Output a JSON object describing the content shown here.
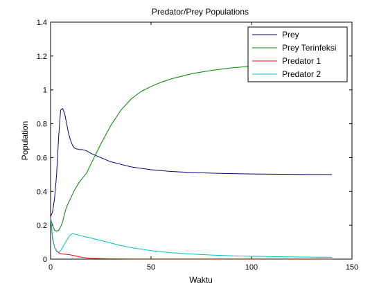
{
  "chart_data": {
    "type": "line",
    "title": "Predator/Prey Populations",
    "xlabel": "Waktu",
    "ylabel": "Population",
    "xlim": [
      0,
      150
    ],
    "ylim": [
      0,
      1.4
    ],
    "xticks": [
      "0",
      "50",
      "100",
      "150"
    ],
    "yticks": [
      "0",
      "0.2",
      "0.4",
      "0.6",
      "0.8",
      "1",
      "1.2",
      "1.4"
    ],
    "grid": false,
    "legend_position": "top-right",
    "series": [
      {
        "name": "Prey",
        "color": "#00007f",
        "x": [
          0,
          1,
          2,
          3,
          4,
          5,
          6,
          7,
          8,
          9,
          10,
          11,
          12,
          14,
          16,
          18,
          20,
          25,
          30,
          35,
          40,
          50,
          60,
          70,
          80,
          90,
          100,
          110,
          120,
          130,
          140
        ],
        "y": [
          0.25,
          0.28,
          0.36,
          0.5,
          0.72,
          0.88,
          0.89,
          0.86,
          0.8,
          0.74,
          0.7,
          0.67,
          0.655,
          0.648,
          0.647,
          0.64,
          0.625,
          0.6,
          0.575,
          0.56,
          0.545,
          0.528,
          0.518,
          0.512,
          0.508,
          0.505,
          0.503,
          0.502,
          0.501,
          0.5,
          0.5
        ]
      },
      {
        "name": "Prey Terinfeksi",
        "color": "#007f00",
        "x": [
          0,
          1,
          2,
          3,
          4,
          5,
          6,
          7,
          8,
          10,
          12,
          14,
          16,
          18,
          20,
          25,
          30,
          35,
          40,
          45,
          50,
          55,
          60,
          70,
          80,
          90,
          100,
          110,
          120,
          130,
          140
        ],
        "y": [
          0.24,
          0.2,
          0.17,
          0.165,
          0.17,
          0.19,
          0.22,
          0.27,
          0.31,
          0.36,
          0.41,
          0.45,
          0.48,
          0.51,
          0.56,
          0.68,
          0.79,
          0.88,
          0.945,
          0.99,
          1.02,
          1.045,
          1.065,
          1.095,
          1.115,
          1.13,
          1.14,
          1.148,
          1.153,
          1.157,
          1.16
        ]
      },
      {
        "name": "Predator 1",
        "color": "#ff0000",
        "x": [
          0,
          1,
          2,
          3,
          4,
          5,
          6,
          8,
          10,
          12,
          14,
          16,
          18,
          20,
          25,
          30,
          40,
          60,
          80,
          100,
          120,
          140
        ],
        "y": [
          0.25,
          0.12,
          0.07,
          0.05,
          0.038,
          0.032,
          0.03,
          0.028,
          0.025,
          0.02,
          0.015,
          0.01,
          0.007,
          0.005,
          0.003,
          0.002,
          0.001,
          0.001,
          0.001,
          0.001,
          0.001,
          0.001
        ]
      },
      {
        "name": "Predator 2",
        "color": "#00bfbf",
        "x": [
          0,
          1,
          2,
          3,
          4,
          5,
          6,
          7,
          8,
          9,
          10,
          11,
          12,
          14,
          16,
          18,
          20,
          25,
          30,
          35,
          40,
          50,
          60,
          70,
          80,
          90,
          100,
          110,
          120,
          130,
          140
        ],
        "y": [
          0.24,
          0.13,
          0.07,
          0.045,
          0.04,
          0.05,
          0.07,
          0.09,
          0.11,
          0.13,
          0.145,
          0.15,
          0.148,
          0.142,
          0.135,
          0.13,
          0.125,
          0.11,
          0.095,
          0.08,
          0.068,
          0.05,
          0.038,
          0.03,
          0.024,
          0.02,
          0.017,
          0.015,
          0.013,
          0.012,
          0.011
        ]
      }
    ]
  }
}
